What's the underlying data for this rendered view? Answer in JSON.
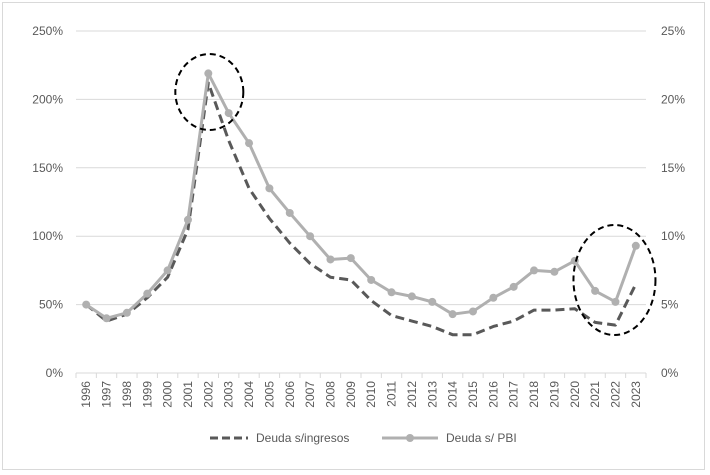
{
  "chart_data": {
    "type": "line",
    "title": "",
    "xlabel": "",
    "ylabel": "",
    "categories": [
      "1996",
      "1997",
      "1998",
      "1999",
      "2000",
      "2001",
      "2002",
      "2003",
      "2004",
      "2005",
      "2006",
      "2007",
      "2008",
      "2009",
      "2010",
      "2011",
      "2012",
      "2013",
      "2014",
      "2015",
      "2016",
      "2017",
      "2018",
      "2019",
      "2020",
      "2021",
      "2022",
      "2023"
    ],
    "y_left": {
      "ylim": [
        0,
        250
      ],
      "ticks": [
        0,
        50,
        100,
        150,
        200,
        250
      ],
      "tick_labels": [
        "0%",
        "50%",
        "100%",
        "150%",
        "200%",
        "250%"
      ]
    },
    "y_right": {
      "ylim": [
        0,
        25
      ],
      "ticks": [
        0,
        5,
        10,
        15,
        20,
        25
      ],
      "tick_labels": [
        "0%",
        "5%",
        "10%",
        "15%",
        "20%",
        "25%"
      ]
    },
    "grid": true,
    "legend_position": "bottom",
    "series": [
      {
        "name": "Deuda s/ingresos",
        "axis": "left",
        "style": "dashed",
        "color": "#595959",
        "values": [
          50,
          38,
          43,
          55,
          70,
          105,
          212,
          170,
          135,
          113,
          95,
          80,
          70,
          68,
          53,
          42,
          38,
          34,
          28,
          28,
          34,
          38,
          46,
          46,
          47,
          37,
          35,
          65
        ]
      },
      {
        "name": "Deuda s/ PBI",
        "axis": "right",
        "style": "solid-markers",
        "color": "#b0b0b0",
        "values": [
          5.0,
          4.0,
          4.4,
          5.8,
          7.5,
          11.2,
          21.9,
          19.0,
          16.8,
          13.5,
          11.7,
          10.0,
          8.3,
          8.4,
          6.8,
          5.9,
          5.6,
          5.2,
          4.3,
          4.5,
          5.5,
          6.3,
          7.5,
          7.4,
          8.2,
          6.0,
          5.2,
          9.3
        ]
      }
    ],
    "annotations": [
      {
        "shape": "dashed-ellipse",
        "around": "2002"
      },
      {
        "shape": "dashed-ellipse",
        "around": "2021-2023"
      }
    ]
  }
}
